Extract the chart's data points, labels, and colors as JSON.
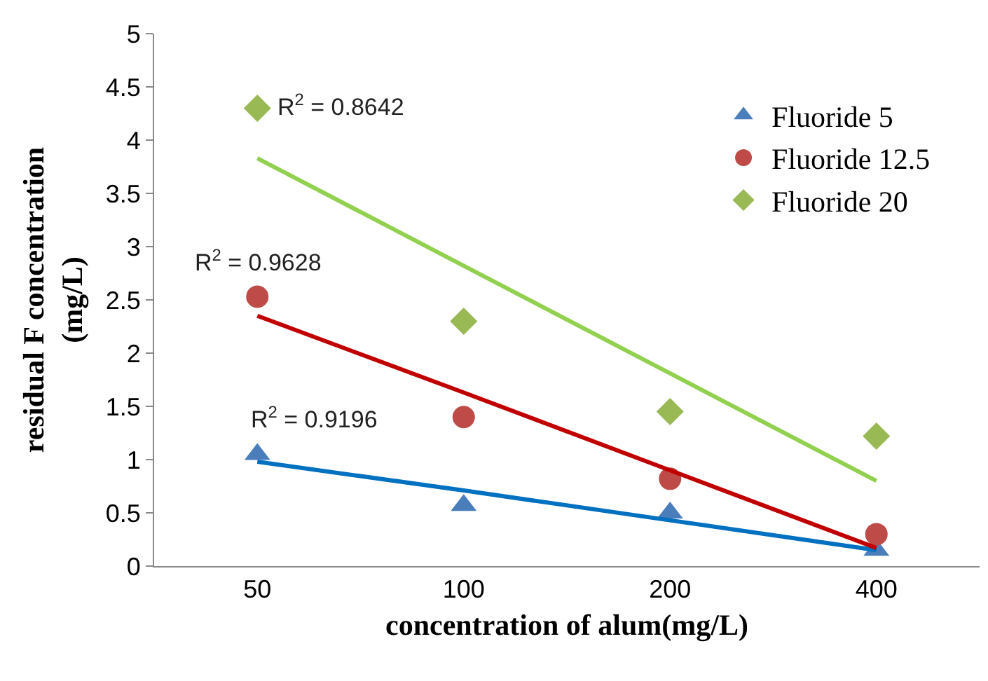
{
  "chart_data": {
    "type": "scatter",
    "xlabel": "concentration of alum(mg/L)",
    "ylabel": "residual F concentration (mg/L)",
    "categories": [
      "50",
      "100",
      "200",
      "400"
    ],
    "ylim": [
      0,
      5
    ],
    "yticks": [
      0,
      0.5,
      1,
      1.5,
      2,
      2.5,
      3,
      3.5,
      4,
      4.5,
      5
    ],
    "grid": false,
    "legend": "top right",
    "series": [
      {
        "name": "Fluoride 5",
        "color": "#4a7ebb",
        "marker": "triangle",
        "values": [
          1.05,
          0.57,
          0.5,
          0.15
        ]
      },
      {
        "name": "Fluoride 12.5",
        "color": "#be4b48",
        "marker": "circle",
        "values": [
          2.53,
          1.4,
          0.82,
          0.3
        ]
      },
      {
        "name": "Fluoride 20",
        "color": "#98b954",
        "marker": "diamond",
        "values": [
          4.3,
          2.3,
          1.45,
          1.22
        ]
      },
      {
        "type": "line",
        "color": "#0070c0",
        "marker": "none",
        "line_style": "solid",
        "values": [
          0.98,
          0.71,
          0.43,
          0.15
        ]
      },
      {
        "type": "line",
        "color": "#c00000",
        "marker": "none",
        "line_style": "solid",
        "values": [
          2.35,
          1.63,
          0.9,
          0.17
        ]
      },
      {
        "type": "line",
        "color": "#92d050",
        "marker": "none",
        "line_style": "solid",
        "values": [
          3.83,
          2.82,
          1.81,
          0.8
        ]
      }
    ],
    "annotations": [
      {
        "text": "R$^{2}$ = 0.8642",
        "x": "50",
        "y": 4.3
      },
      {
        "text": "R$^{2}$ = 0.9628",
        "x": "50",
        "y": 2.53
      },
      {
        "text": "R$^{2}$ = 0.9196",
        "x": "50",
        "y": 1.05
      }
    ]
  }
}
